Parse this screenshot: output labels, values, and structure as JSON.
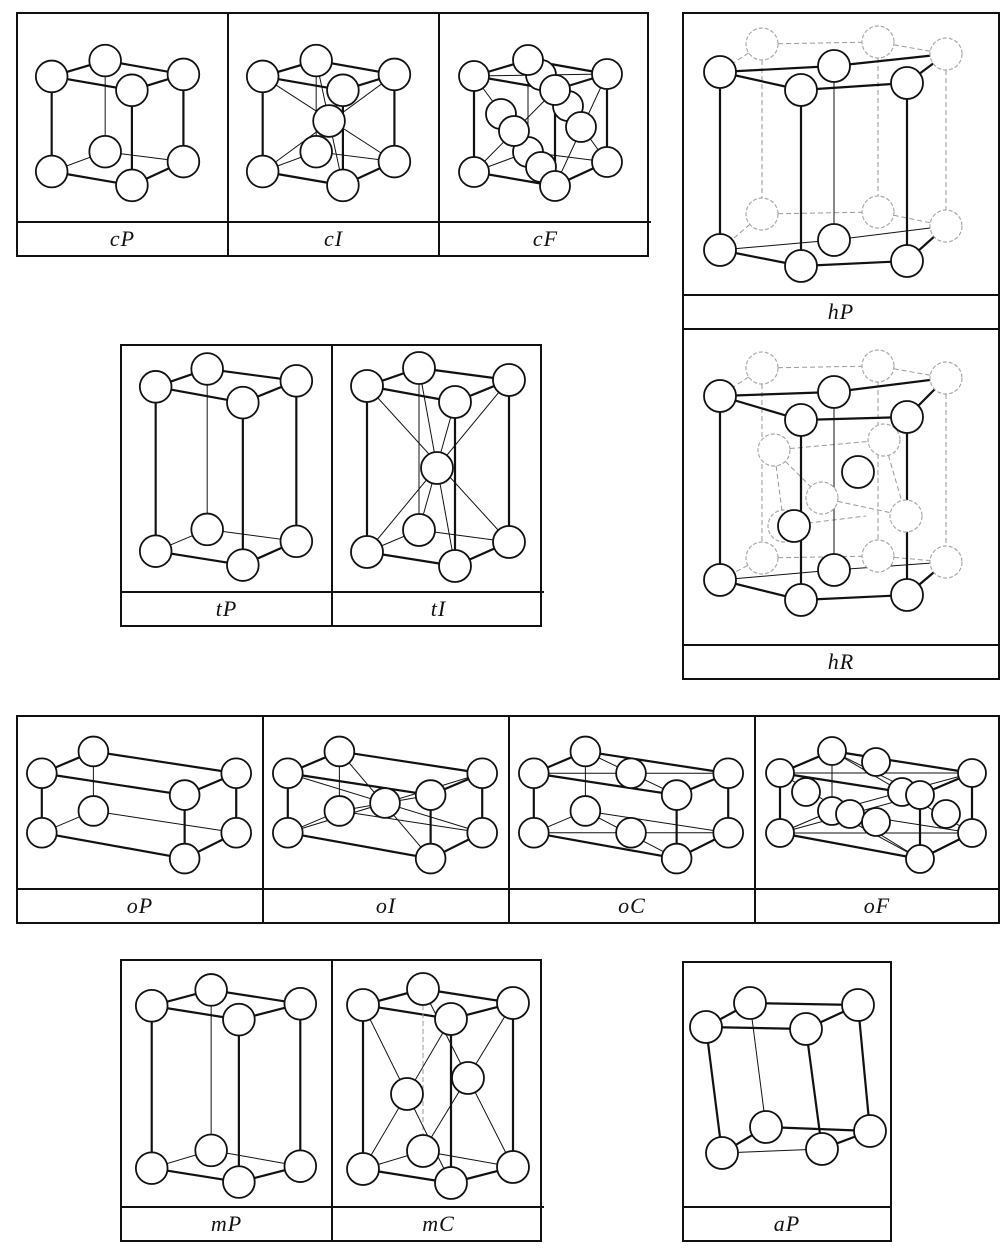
{
  "lattices": {
    "cP": "cP",
    "cI": "cI",
    "cF": "cF",
    "hP": "hP",
    "hR": "hR",
    "tP": "tP",
    "tI": "tI",
    "oP": "oP",
    "oI": "oI",
    "oC": "oC",
    "oF": "oF",
    "mP": "mP",
    "mC": "mC",
    "aP": "aP"
  }
}
